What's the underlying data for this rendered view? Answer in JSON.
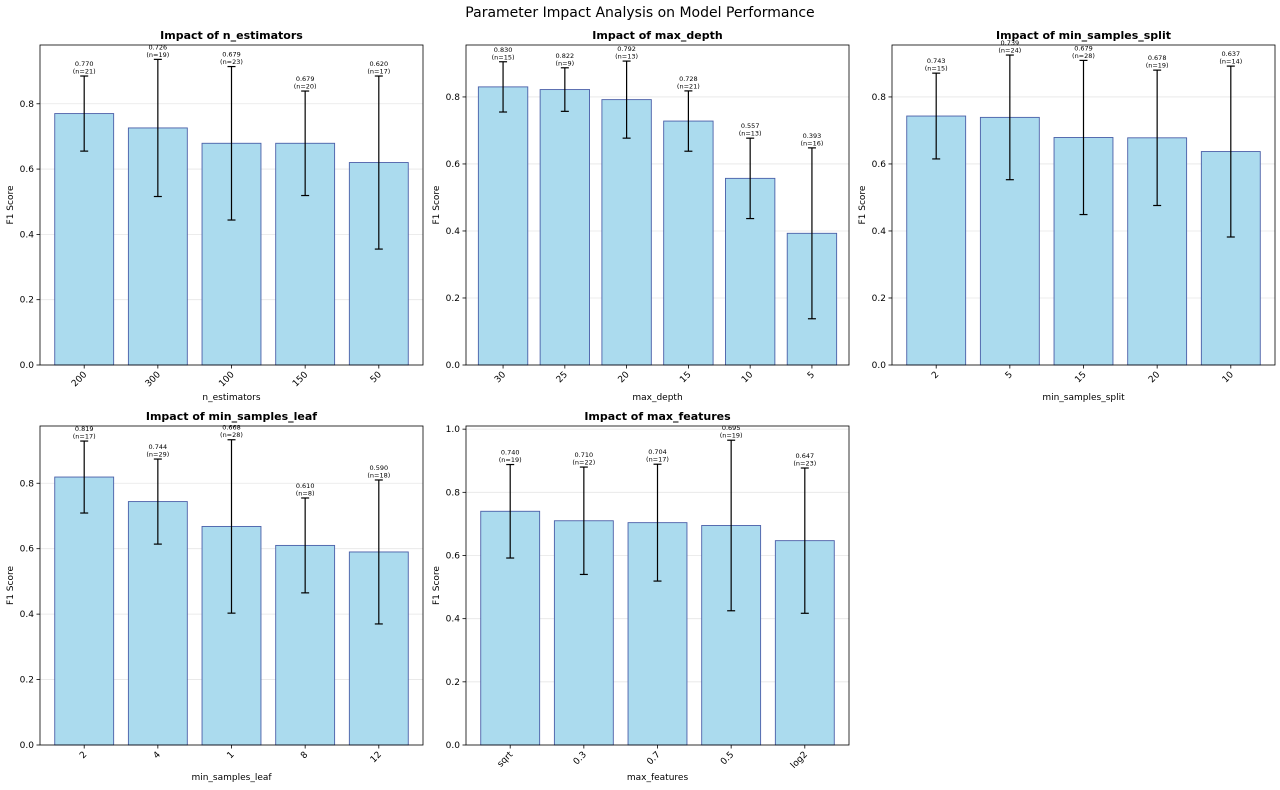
{
  "figure_title": "Parameter Impact Analysis on Model Performance",
  "colors": {
    "bar_fill": "#abdbee",
    "bar_edge": "#4a5fa8",
    "error": "#000000"
  },
  "chart_data": [
    {
      "type": "bar",
      "title": "Impact of n_estimators",
      "xlabel": "n_estimators",
      "ylabel": "F1 Score",
      "categories": [
        "200",
        "300",
        "100",
        "150",
        "50"
      ],
      "values": [
        0.77,
        0.726,
        0.679,
        0.679,
        0.62
      ],
      "errors": [
        0.115,
        0.21,
        0.235,
        0.16,
        0.265
      ],
      "value_labels": [
        "0.770",
        "0.726",
        "0.679",
        "0.679",
        "0.620"
      ],
      "n_labels": [
        "(n=21)",
        "(n=19)",
        "(n=23)",
        "(n=20)",
        "(n=17)"
      ],
      "ylim": [
        0,
        0.98
      ],
      "yticks": [
        0.0,
        0.2,
        0.4,
        0.6,
        0.8
      ],
      "ytick_labels": [
        "0.0",
        "0.2",
        "0.4",
        "0.6",
        "0.8"
      ],
      "grid": "y"
    },
    {
      "type": "bar",
      "title": "Impact of max_depth",
      "xlabel": "max_depth",
      "ylabel": "F1 Score",
      "categories": [
        "30",
        "25",
        "20",
        "15",
        "10",
        "5"
      ],
      "values": [
        0.83,
        0.822,
        0.792,
        0.728,
        0.557,
        0.393
      ],
      "errors": [
        0.075,
        0.065,
        0.115,
        0.09,
        0.12,
        0.255
      ],
      "value_labels": [
        "0.830",
        "0.822",
        "0.792",
        "0.728",
        "0.557",
        "0.393"
      ],
      "n_labels": [
        "(n=15)",
        "(n=9)",
        "(n=13)",
        "(n=21)",
        "(n=13)",
        "(n=16)"
      ],
      "ylim": [
        0,
        0.955
      ],
      "yticks": [
        0.0,
        0.2,
        0.4,
        0.6,
        0.8
      ],
      "ytick_labels": [
        "0.0",
        "0.2",
        "0.4",
        "0.6",
        "0.8"
      ],
      "grid": "y"
    },
    {
      "type": "bar",
      "title": "Impact of min_samples_split",
      "xlabel": "min_samples_split",
      "ylabel": "F1 Score",
      "categories": [
        "2",
        "5",
        "15",
        "20",
        "10"
      ],
      "values": [
        0.743,
        0.739,
        0.679,
        0.678,
        0.637
      ],
      "errors": [
        0.128,
        0.186,
        0.23,
        0.202,
        0.255
      ],
      "value_labels": [
        "0.743",
        "0.739",
        "0.679",
        "0.678",
        "0.637"
      ],
      "n_labels": [
        "(n=15)",
        "(n=24)",
        "(n=28)",
        "(n=19)",
        "(n=14)"
      ],
      "ylim": [
        0,
        0.955
      ],
      "yticks": [
        0.0,
        0.2,
        0.4,
        0.6,
        0.8
      ],
      "ytick_labels": [
        "0.0",
        "0.2",
        "0.4",
        "0.6",
        "0.8"
      ],
      "grid": "y"
    },
    {
      "type": "bar",
      "title": "Impact of min_samples_leaf",
      "xlabel": "min_samples_leaf",
      "ylabel": "F1 Score",
      "categories": [
        "2",
        "4",
        "1",
        "8",
        "12"
      ],
      "values": [
        0.819,
        0.744,
        0.668,
        0.61,
        0.59
      ],
      "errors": [
        0.11,
        0.13,
        0.265,
        0.145,
        0.22
      ],
      "value_labels": [
        "0.819",
        "0.744",
        "0.668",
        "0.610",
        "0.590"
      ],
      "n_labels": [
        "(n=17)",
        "(n=29)",
        "(n=28)",
        "(n=8)",
        "(n=18)"
      ],
      "ylim": [
        0,
        0.975
      ],
      "yticks": [
        0.0,
        0.2,
        0.4,
        0.6,
        0.8
      ],
      "ytick_labels": [
        "0.0",
        "0.2",
        "0.4",
        "0.6",
        "0.8"
      ],
      "grid": "y"
    },
    {
      "type": "bar",
      "title": "Impact of max_features",
      "xlabel": "max_features",
      "ylabel": "F1 Score",
      "categories": [
        "sqrt",
        "0.3",
        "0.7",
        "0.5",
        "log2"
      ],
      "values": [
        0.74,
        0.71,
        0.704,
        0.695,
        0.647
      ],
      "errors": [
        0.148,
        0.17,
        0.185,
        0.27,
        0.23
      ],
      "value_labels": [
        "0.740",
        "0.710",
        "0.704",
        "0.695",
        "0.647"
      ],
      "n_labels": [
        "(n=19)",
        "(n=22)",
        "(n=17)",
        "(n=19)",
        "(n=23)"
      ],
      "ylim": [
        0,
        1.01
      ],
      "yticks": [
        0.0,
        0.2,
        0.4,
        0.6,
        0.8,
        1.0
      ],
      "ytick_labels": [
        "0.0",
        "0.2",
        "0.4",
        "0.6",
        "0.8",
        "1.0"
      ],
      "grid": "y"
    }
  ]
}
